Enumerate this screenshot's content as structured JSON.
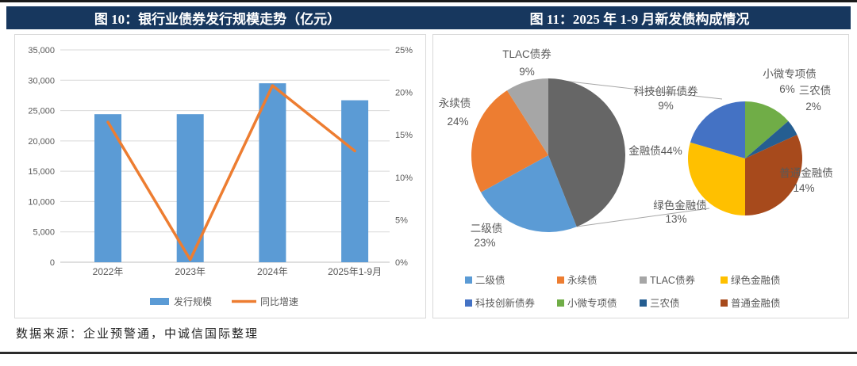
{
  "titles": {
    "left": "图 10：银行业债券发行规模走势（亿元）",
    "right": "图 11：2025 年 1-9 月新发债构成情况"
  },
  "footer": {
    "source": "数据来源：企业预警通，中诚信国际整理"
  },
  "colors": {
    "title_band": "#17375E",
    "bar_blue": "#5B9BD5",
    "line_orange": "#ED7D31",
    "grid": "#D9D9D9",
    "axis": "#BFBFBF",
    "label_gray": "#595959"
  },
  "chart_data": [
    {
      "type": "bar",
      "subtype": "combo-bar-line-dual-axis",
      "title": "图 10：银行业债券发行规模走势（亿元）",
      "categories": [
        "2022年",
        "2023年",
        "2024年",
        "2025年1-9月"
      ],
      "series": [
        {
          "name": "发行规模",
          "chart": "bar",
          "axis": "left",
          "unit": "亿元",
          "values": [
            24400,
            24400,
            29500,
            26700
          ],
          "color": "#5B9BD5"
        },
        {
          "name": "同比增速",
          "chart": "line",
          "axis": "right",
          "unit": "%",
          "values": [
            16.5,
            0.3,
            20.8,
            13.1
          ],
          "color": "#ED7D31"
        }
      ],
      "left_axis": {
        "min": 0,
        "max": 35000,
        "step": 5000,
        "tick_labels": [
          "0",
          "5,000",
          "10,000",
          "15,000",
          "20,000",
          "25,000",
          "30,000",
          "35,000"
        ]
      },
      "right_axis": {
        "min": 0,
        "max": 25,
        "step": 5,
        "tick_labels": [
          "0%",
          "5%",
          "10%",
          "15%",
          "20%",
          "25%"
        ]
      },
      "grid": true,
      "legend_position": "bottom"
    },
    {
      "type": "pie",
      "subtype": "pie-of-pie",
      "title": "图 11：2025 年 1-9 月新发债构成情况",
      "main_pie": {
        "start": "top",
        "direction": "clockwise",
        "slices": [
          {
            "label": "金融债",
            "pct": 44,
            "color": "#666666",
            "label_style": "inline"
          },
          {
            "label": "二级债",
            "pct": 23,
            "color": "#5B9BD5"
          },
          {
            "label": "永续债",
            "pct": 24,
            "color": "#ED7D31"
          },
          {
            "label": "TLAC债券",
            "pct": 9,
            "color": "#A6A6A6"
          }
        ]
      },
      "secondary_pie": {
        "parent": "金融债",
        "parent_pct": 44,
        "start": "top",
        "direction": "clockwise",
        "slices": [
          {
            "label": "小微专项债",
            "pct": 6,
            "color": "#70AD47"
          },
          {
            "label": "三农债",
            "pct": 2,
            "color": "#255E91"
          },
          {
            "label": "普通金融债",
            "pct": 14,
            "color": "#A74A1C"
          },
          {
            "label": "绿色金融债",
            "pct": 13,
            "color": "#FFC000"
          },
          {
            "label": "科技创新债券",
            "pct": 9,
            "color": "#4472C4"
          }
        ]
      },
      "legend": [
        {
          "label": "二级债",
          "color": "#5B9BD5"
        },
        {
          "label": "永续债",
          "color": "#ED7D31"
        },
        {
          "label": "TLAC债券",
          "color": "#A6A6A6"
        },
        {
          "label": "绿色金融债",
          "color": "#FFC000"
        },
        {
          "label": "科技创新债券",
          "color": "#4472C4"
        },
        {
          "label": "小微专项债",
          "color": "#70AD47"
        },
        {
          "label": "三农债",
          "color": "#255E91"
        },
        {
          "label": "普通金融债",
          "color": "#A74A1C"
        }
      ],
      "legend_position": "bottom"
    }
  ]
}
